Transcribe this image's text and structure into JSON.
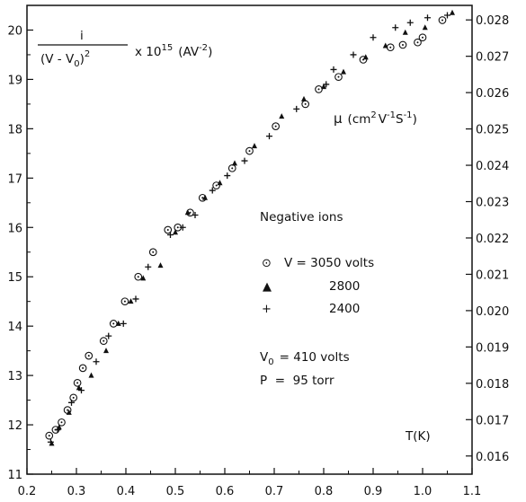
{
  "chart_data": {
    "type": "scatter",
    "xlim": [
      0.2,
      1.1
    ],
    "ylim": [
      11,
      20.5
    ],
    "y2lim": [
      0.0155,
      0.0284
    ],
    "x_ticks": [
      "0.2",
      "0.3",
      "0.4",
      "0.5",
      "0.6",
      "0.7",
      "0.8",
      "0.9",
      "1.0",
      "1.1"
    ],
    "y_ticks": [
      "11",
      "12",
      "13",
      "14",
      "15",
      "16",
      "17",
      "18",
      "19",
      "20"
    ],
    "y2_ticks": [
      "0.016",
      "0.017",
      "0.018",
      "0.019",
      "0.020",
      "0.021",
      "0.022",
      "0.023",
      "0.024",
      "0.025",
      "0.026",
      "0.027",
      "0.028"
    ],
    "grid": false,
    "y_label": {
      "numerator": "i",
      "denominator_main": "(V - V",
      "denominator_sub": "0",
      "denominator_close": ")",
      "denominator_sup": "2",
      "factor": "x 10",
      "factor_sup": "15",
      "unit": "(AV",
      "unit_sup": "-2",
      "unit_close": ")"
    },
    "y2_label": {
      "symbol": "μ",
      "unit_open": "(cm",
      "sup1": "2",
      "part2": "V",
      "sup2": "-1",
      "part3": "S",
      "sup3": "-1",
      "unit_close": ")"
    },
    "x_label": "T(K)",
    "legend": {
      "title": "Negative ions",
      "entries": [
        {
          "marker": "circle",
          "symbol": "⊙",
          "label": "V = 3050 volts"
        },
        {
          "marker": "triangle",
          "symbol": "▲",
          "label": "2800"
        },
        {
          "marker": "plus",
          "symbol": "+",
          "label": "2400"
        }
      ]
    },
    "conditions": {
      "v0_main": "V",
      "v0_sub": "0",
      "v0_rest": "= 410 volts",
      "p_line": "P  =  95 torr"
    },
    "series": [
      {
        "name": "V = 3050 volts",
        "marker": "circle",
        "x": [
          0.245,
          0.258,
          0.27,
          0.282,
          0.294,
          0.302,
          0.313,
          0.325,
          0.355,
          0.375,
          0.398,
          0.425,
          0.455,
          0.485,
          0.505,
          0.53,
          0.555,
          0.583,
          0.615,
          0.65,
          0.703,
          0.763,
          0.79,
          0.83,
          0.88,
          0.935,
          0.96,
          0.99,
          1.0,
          1.04
        ],
        "y": [
          11.78,
          11.9,
          12.05,
          12.3,
          12.55,
          12.85,
          13.15,
          13.4,
          13.7,
          14.05,
          14.5,
          15.0,
          15.5,
          15.95,
          16.0,
          16.3,
          16.6,
          16.85,
          17.2,
          17.55,
          18.05,
          18.5,
          18.8,
          19.05,
          19.4,
          19.65,
          19.7,
          19.75,
          19.85,
          20.2
        ]
      },
      {
        "name": "2800",
        "marker": "triangle",
        "x": [
          0.25,
          0.265,
          0.285,
          0.305,
          0.33,
          0.36,
          0.385,
          0.41,
          0.435,
          0.47,
          0.5,
          0.525,
          0.56,
          0.59,
          0.62,
          0.66,
          0.715,
          0.76,
          0.8,
          0.84,
          0.885,
          0.925,
          0.965,
          1.005,
          1.06
        ],
        "y": [
          11.62,
          11.95,
          12.25,
          12.75,
          13.0,
          13.5,
          14.05,
          14.5,
          14.97,
          15.23,
          15.9,
          16.3,
          16.6,
          16.9,
          17.3,
          17.65,
          18.25,
          18.6,
          18.85,
          19.15,
          19.45,
          19.68,
          19.95,
          20.05,
          20.35
        ]
      },
      {
        "name": "2400",
        "marker": "plus",
        "x": [
          0.248,
          0.262,
          0.29,
          0.31,
          0.34,
          0.365,
          0.395,
          0.42,
          0.445,
          0.49,
          0.515,
          0.54,
          0.575,
          0.605,
          0.64,
          0.69,
          0.745,
          0.805,
          0.82,
          0.86,
          0.9,
          0.945,
          0.975,
          1.01,
          1.05
        ],
        "y": [
          11.65,
          11.9,
          12.45,
          12.7,
          13.28,
          13.8,
          14.05,
          14.55,
          15.2,
          15.85,
          16.0,
          16.25,
          16.75,
          17.05,
          17.35,
          17.85,
          18.4,
          18.9,
          19.2,
          19.5,
          19.85,
          20.05,
          20.15,
          20.25,
          20.3
        ]
      }
    ]
  }
}
